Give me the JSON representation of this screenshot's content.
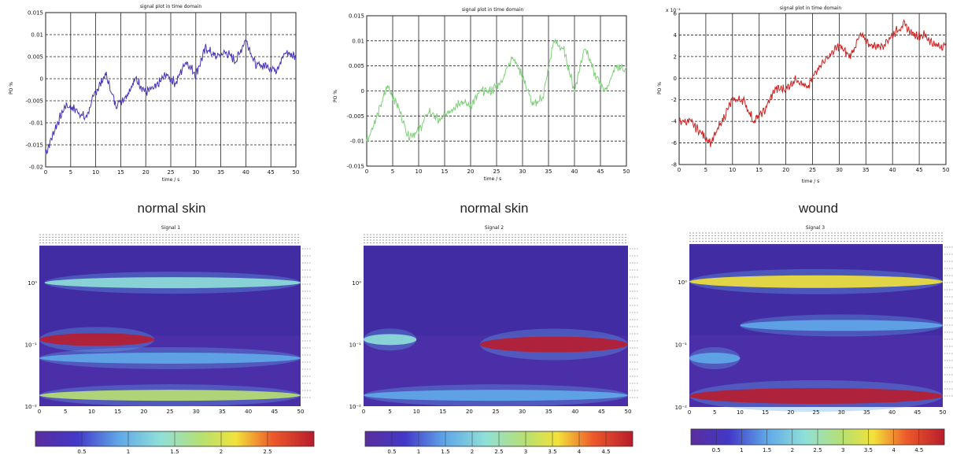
{
  "captions": [
    "normal skin",
    "normal skin",
    "wound"
  ],
  "top_plots": [
    {
      "title": "signal plot in time domain",
      "xlabel": "time / s",
      "ylabel": "PO %",
      "color": "#4a32b8",
      "xticks": [
        "0",
        "5",
        "10",
        "15",
        "20",
        "25",
        "30",
        "35",
        "40",
        "45",
        "50"
      ],
      "yticks": [
        "0.015",
        "0.01",
        "0.005",
        "0",
        "-0.005",
        "-0.01",
        "-0.015",
        "-0.02"
      ],
      "ylim": [
        -0.02,
        0.015
      ]
    },
    {
      "title": "signal plot in time domain",
      "xlabel": "time / s",
      "ylabel": "PO %",
      "color": "#7fd07a",
      "xticks": [
        "0",
        "5",
        "10",
        "15",
        "20",
        "25",
        "30",
        "35",
        "40",
        "45",
        "50"
      ],
      "yticks": [
        "0.015",
        "0.01",
        "0.005",
        "0",
        "-0.005",
        "-0.01",
        "-0.015"
      ],
      "ylim": [
        -0.015,
        0.015
      ]
    },
    {
      "title": "signal plot in time domain",
      "xlabel": "time / s",
      "ylabel": "PO %",
      "color": "#cc2222",
      "xticks": [
        "0",
        "5",
        "10",
        "15",
        "20",
        "25",
        "30",
        "35",
        "40",
        "45",
        "50"
      ],
      "yticks": [
        "6",
        "4",
        "2",
        "0",
        "-2",
        "-4",
        "-6",
        "-8"
      ],
      "ylim": [
        -8,
        6
      ],
      "exponent": "x 10⁻⁴"
    }
  ],
  "bottom_plots": [
    {
      "title": "Signal 1",
      "yticks": [
        "10⁰",
        "10⁻¹",
        "10⁻²"
      ],
      "xticks": [
        "0",
        "5",
        "10",
        "15",
        "20",
        "25",
        "30",
        "35",
        "40",
        "45",
        "50"
      ],
      "colorbar": [
        "0.5",
        "1",
        "1.5",
        "2",
        "2.5"
      ]
    },
    {
      "title": "Signal 2",
      "yticks": [
        "10⁰",
        "10⁻¹",
        "10⁻²"
      ],
      "xticks": [
        "0",
        "5",
        "10",
        "15",
        "20",
        "25",
        "30",
        "35",
        "40",
        "45",
        "50"
      ],
      "colorbar": [
        "0.5",
        "1",
        "1.5",
        "2",
        "2.5",
        "3",
        "3.5",
        "4",
        "4.5"
      ]
    },
    {
      "title": "Signal 3",
      "yticks": [
        "10⁰",
        "10⁻¹",
        "10⁻²"
      ],
      "xticks": [
        "0",
        "5",
        "10",
        "15",
        "20",
        "25",
        "30",
        "35",
        "40",
        "45",
        "50"
      ],
      "colorbar": [
        "0.5",
        "1",
        "1.5",
        "2",
        "2.5",
        "3",
        "3.5",
        "4",
        "4.5"
      ]
    }
  ],
  "chart_data": [
    {
      "type": "line",
      "title": "signal plot in time domain",
      "xlabel": "time / s",
      "ylabel": "PO %",
      "xlim": [
        0,
        50
      ],
      "ylim": [
        -0.02,
        0.015
      ],
      "grid": true,
      "x": [
        0,
        2,
        4,
        6,
        8,
        10,
        12,
        14,
        16,
        18,
        20,
        22,
        24,
        26,
        28,
        30,
        32,
        34,
        36,
        38,
        40,
        42,
        44,
        46,
        48,
        50
      ],
      "series": [
        {
          "values": [
            -0.017,
            -0.011,
            -0.006,
            -0.007,
            -0.009,
            -0.003,
            0.001,
            -0.006,
            -0.004,
            0.0,
            -0.003,
            -0.002,
            0.001,
            -0.001,
            0.004,
            0.001,
            0.007,
            0.005,
            0.006,
            0.004,
            0.009,
            0.003,
            0.003,
            0.002,
            0.006,
            0.005
          ]
        }
      ]
    },
    {
      "type": "line",
      "title": "signal plot in time domain",
      "xlabel": "time / s",
      "ylabel": "PO %",
      "xlim": [
        0,
        50
      ],
      "ylim": [
        -0.015,
        0.015
      ],
      "grid": true,
      "x": [
        0,
        2,
        4,
        6,
        8,
        10,
        12,
        14,
        16,
        18,
        20,
        22,
        24,
        26,
        28,
        30,
        32,
        34,
        36,
        38,
        40,
        42,
        44,
        46,
        48,
        50
      ],
      "series": [
        {
          "values": [
            -0.01,
            -0.005,
            0.001,
            -0.003,
            -0.009,
            -0.008,
            -0.004,
            -0.006,
            -0.004,
            -0.002,
            -0.003,
            0.0,
            0.0,
            0.002,
            0.007,
            0.003,
            -0.003,
            -0.001,
            0.01,
            0.008,
            0.0,
            0.009,
            0.003,
            0.0,
            0.005,
            0.004
          ]
        }
      ]
    },
    {
      "type": "line",
      "title": "signal plot in time domain",
      "xlabel": "time / s",
      "ylabel": "PO %",
      "xlim": [
        0,
        50
      ],
      "ylim": [
        -8,
        6
      ],
      "grid": true,
      "x": [
        0,
        2,
        4,
        6,
        8,
        10,
        12,
        14,
        16,
        18,
        20,
        22,
        24,
        26,
        28,
        30,
        32,
        34,
        36,
        38,
        40,
        42,
        44,
        46,
        48,
        50
      ],
      "series": [
        {
          "values": [
            -4,
            -4,
            -5,
            -6,
            -4,
            -2,
            -2,
            -4,
            -3,
            -1,
            -1,
            0,
            -1,
            1,
            2,
            3,
            2,
            4,
            3,
            3,
            4,
            5,
            4,
            4,
            3,
            3
          ]
        }
      ]
    },
    {
      "type": "heatmap",
      "title": "Signal 1",
      "xlim": [
        0,
        50
      ],
      "y_scale": "log",
      "colorbar_ticks": [
        0.5,
        1,
        1.5,
        2,
        2.5
      ],
      "bands": [
        {
          "y": 1.0,
          "x_start": 1,
          "x_end": 50,
          "level": 0.9
        },
        {
          "y": 0.12,
          "x_start": 0,
          "x_end": 22,
          "level": 2.5
        },
        {
          "y": 0.06,
          "x_start": 0,
          "x_end": 50,
          "level": 0.8
        },
        {
          "y": 0.015,
          "x_start": 0,
          "x_end": 50,
          "level": 1.3
        }
      ]
    },
    {
      "type": "heatmap",
      "title": "Signal 2",
      "xlim": [
        0,
        50
      ],
      "y_scale": "log",
      "colorbar_ticks": [
        0.5,
        1,
        1.5,
        2,
        2.5,
        3,
        3.5,
        4,
        4.5
      ],
      "bands": [
        {
          "y": 0.12,
          "x_start": 0,
          "x_end": 10,
          "level": 1.6
        },
        {
          "y": 0.1,
          "x_start": 22,
          "x_end": 50,
          "level": 4.5
        },
        {
          "y": 0.015,
          "x_start": 0,
          "x_end": 50,
          "level": 1.0
        }
      ]
    },
    {
      "type": "heatmap",
      "title": "Signal 3",
      "xlim": [
        0,
        50
      ],
      "y_scale": "log",
      "colorbar_ticks": [
        0.5,
        1,
        1.5,
        2,
        2.5,
        3,
        3.5,
        4,
        4.5
      ],
      "bands": [
        {
          "y": 1.0,
          "x_start": 0,
          "x_end": 50,
          "level": 3.0
        },
        {
          "y": 0.2,
          "x_start": 10,
          "x_end": 50,
          "level": 1.0
        },
        {
          "y": 0.06,
          "x_start": 0,
          "x_end": 10,
          "level": 1.0
        },
        {
          "y": 0.015,
          "x_start": 0,
          "x_end": 50,
          "level": 4.5
        }
      ]
    }
  ]
}
